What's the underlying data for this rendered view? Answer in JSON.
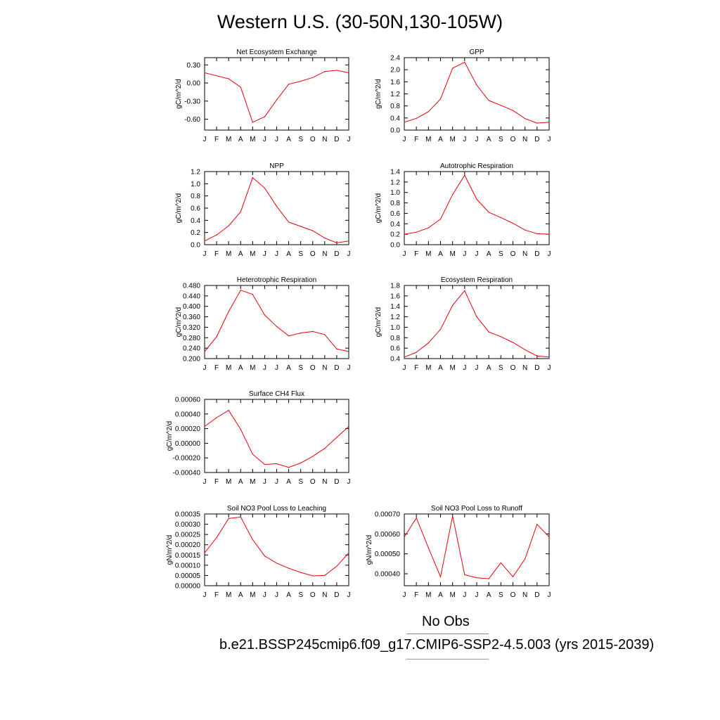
{
  "title": "Western U.S. (30-50N,130-105W)",
  "legend": {
    "obs_label": "No Obs",
    "obs_color": "#7b7bff",
    "case_label": "b.e21.BSSP245cmip6.f09_g17.CMIP6-SSP2-4.5.003 (yrs 2015-2039)",
    "case_color": "#ff7070"
  },
  "line_color": "#e8000b",
  "chart_data": [
    {
      "type": "line",
      "title": "Net Ecosystem Exchange",
      "ylabel": "gC/m^2/d",
      "categories": [
        "J",
        "F",
        "M",
        "A",
        "M",
        "J",
        "J",
        "A",
        "S",
        "O",
        "N",
        "D",
        "J"
      ],
      "values": [
        0.17,
        0.12,
        0.07,
        -0.07,
        -0.65,
        -0.56,
        -0.28,
        -0.02,
        0.03,
        0.09,
        0.19,
        0.21,
        0.17
      ],
      "ylim": [
        -0.78,
        0.42
      ],
      "yticks": [
        0.3,
        0.0,
        -0.3,
        -0.6
      ],
      "yticklabels": [
        "0.30",
        "0.00",
        "-0.30",
        "-0.60"
      ]
    },
    {
      "type": "line",
      "title": "GPP",
      "ylabel": "gC/m^2/d",
      "categories": [
        "J",
        "F",
        "M",
        "A",
        "M",
        "J",
        "J",
        "A",
        "S",
        "O",
        "N",
        "D",
        "J"
      ],
      "values": [
        0.26,
        0.39,
        0.61,
        1.03,
        2.05,
        2.25,
        1.49,
        0.98,
        0.82,
        0.65,
        0.38,
        0.23,
        0.26
      ],
      "ylim": [
        0,
        2.4
      ],
      "yticks": [
        0,
        0.4,
        0.8,
        1.2,
        1.6,
        2.0,
        2.4
      ],
      "yticklabels": [
        "0.0",
        "0.4",
        "0.8",
        "1.2",
        "1.6",
        "2.0",
        "2.4"
      ]
    },
    {
      "type": "line",
      "title": "NPP",
      "ylabel": "gC/m^2/d",
      "categories": [
        "J",
        "F",
        "M",
        "A",
        "M",
        "J",
        "J",
        "A",
        "S",
        "O",
        "N",
        "D",
        "J"
      ],
      "values": [
        0.06,
        0.16,
        0.31,
        0.54,
        1.1,
        0.93,
        0.63,
        0.37,
        0.3,
        0.23,
        0.11,
        0.03,
        0.06
      ],
      "ylim": [
        0,
        1.2
      ],
      "yticks": [
        0,
        0.2,
        0.4,
        0.6,
        0.8,
        1.0,
        1.2
      ],
      "yticklabels": [
        "0.0",
        "0.2",
        "0.4",
        "0.6",
        "0.8",
        "1.0",
        "1.2"
      ]
    },
    {
      "type": "line",
      "title": "Autotrophic Respiration",
      "ylabel": "gC/m^2/d",
      "categories": [
        "J",
        "F",
        "M",
        "A",
        "M",
        "J",
        "J",
        "A",
        "S",
        "O",
        "N",
        "D",
        "J"
      ],
      "values": [
        0.2,
        0.24,
        0.32,
        0.49,
        0.96,
        1.33,
        0.87,
        0.62,
        0.52,
        0.41,
        0.28,
        0.21,
        0.2
      ],
      "ylim": [
        0,
        1.4
      ],
      "yticks": [
        0,
        0.2,
        0.4,
        0.6,
        0.8,
        1.0,
        1.2,
        1.4
      ],
      "yticklabels": [
        "0.0",
        "0.2",
        "0.4",
        "0.6",
        "0.8",
        "1.0",
        "1.2",
        "1.4"
      ]
    },
    {
      "type": "line",
      "title": "Heterotrophic Respiration",
      "ylabel": "gC/m^2/d",
      "categories": [
        "J",
        "F",
        "M",
        "A",
        "M",
        "J",
        "J",
        "A",
        "S",
        "O",
        "N",
        "D",
        "J"
      ],
      "values": [
        0.227,
        0.284,
        0.38,
        0.462,
        0.446,
        0.367,
        0.323,
        0.287,
        0.298,
        0.304,
        0.292,
        0.237,
        0.227
      ],
      "ylim": [
        0.2,
        0.48
      ],
      "yticks": [
        0.2,
        0.24,
        0.28,
        0.32,
        0.36,
        0.4,
        0.44,
        0.48
      ],
      "yticklabels": [
        "0.200",
        "0.240",
        "0.280",
        "0.320",
        "0.360",
        "0.400",
        "0.440",
        "0.480"
      ]
    },
    {
      "type": "line",
      "title": "Ecosystem Respiration",
      "ylabel": "gC/m^2/d",
      "categories": [
        "J",
        "F",
        "M",
        "A",
        "M",
        "J",
        "J",
        "A",
        "S",
        "O",
        "N",
        "D",
        "J"
      ],
      "values": [
        0.43,
        0.52,
        0.7,
        0.96,
        1.42,
        1.7,
        1.2,
        0.91,
        0.82,
        0.71,
        0.57,
        0.45,
        0.43
      ],
      "ylim": [
        0.4,
        1.8
      ],
      "yticks": [
        0.4,
        0.6,
        0.8,
        1.0,
        1.2,
        1.4,
        1.6,
        1.8
      ],
      "yticklabels": [
        "0.4",
        "0.6",
        "0.8",
        "1.0",
        "1.2",
        "1.4",
        "1.6",
        "1.8"
      ]
    },
    {
      "type": "line",
      "title": "Surface CH4 Flux",
      "ylabel": "gC/m^2/d",
      "categories": [
        "J",
        "F",
        "M",
        "A",
        "M",
        "J",
        "J",
        "A",
        "S",
        "O",
        "N",
        "D",
        "J"
      ],
      "values": [
        0.00023,
        0.00035,
        0.00045,
        0.00019,
        -0.00015,
        -0.00029,
        -0.00028,
        -0.00033,
        -0.00027,
        -0.00018,
        -7e-05,
        8e-05,
        0.00023
      ],
      "ylim": [
        -0.0004,
        0.0006
      ],
      "yticks": [
        -0.0004,
        -0.0002,
        0,
        0.0002,
        0.0004,
        0.0006
      ],
      "yticklabels": [
        "-0.00040",
        "-0.00020",
        "0.00000",
        "0.00020",
        "0.00040",
        "0.00060"
      ]
    },
    {
      "type": "line",
      "title": "Soil NO3 Pool Loss to Leaching",
      "ylabel": "gN/m^2/d",
      "categories": [
        "J",
        "F",
        "M",
        "A",
        "M",
        "J",
        "J",
        "A",
        "S",
        "O",
        "N",
        "D",
        "J"
      ],
      "values": [
        0.00016,
        0.000235,
        0.000328,
        0.000335,
        0.000225,
        0.000145,
        0.00011,
        8.5e-05,
        6.5e-05,
        4.8e-05,
        5e-05,
        9.5e-05,
        0.00016
      ],
      "ylim": [
        0,
        0.00035
      ],
      "yticks": [
        0,
        5e-05,
        0.0001,
        0.00015,
        0.0002,
        0.00025,
        0.0003,
        0.00035
      ],
      "yticklabels": [
        "0.00000",
        "0.00005",
        "0.00010",
        "0.00015",
        "0.00020",
        "0.00025",
        "0.00030",
        "0.00035"
      ]
    },
    {
      "type": "line",
      "title": "Soil NO3 Pool Loss to Runoff",
      "ylabel": "gN/m^2/d",
      "categories": [
        "J",
        "F",
        "M",
        "A",
        "M",
        "J",
        "J",
        "A",
        "S",
        "O",
        "N",
        "D",
        "J"
      ],
      "values": [
        0.000585,
        0.00068,
        0.00053,
        0.000385,
        0.00069,
        0.000395,
        0.00038,
        0.000375,
        0.000455,
        0.000385,
        0.000475,
        0.000648,
        0.000585
      ],
      "ylim": [
        0.00034,
        0.0007
      ],
      "yticks": [
        0.0004,
        0.0005,
        0.0006,
        0.0007
      ],
      "yticklabels": [
        "0.00040",
        "0.00050",
        "0.00060",
        "0.00070"
      ]
    }
  ]
}
